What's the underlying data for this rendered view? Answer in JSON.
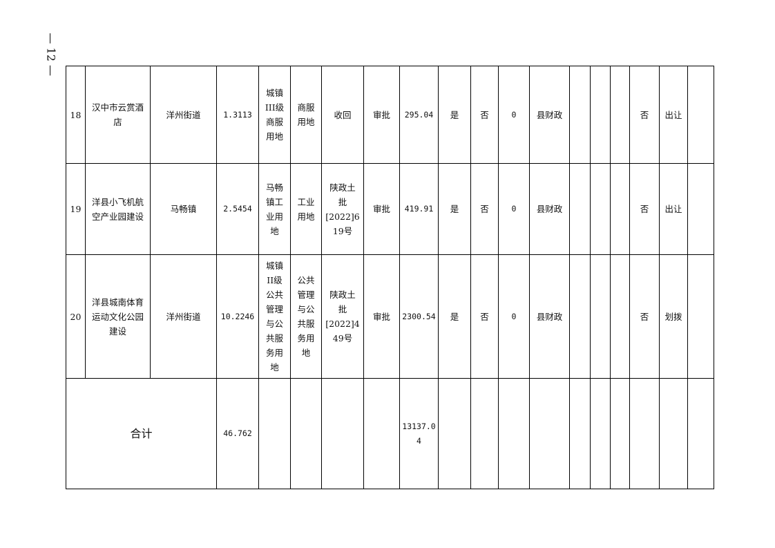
{
  "page_number": "— 12 —",
  "rows": [
    {
      "no": "18",
      "project": "汉中市云赏酒\n店",
      "location": "洋州街道",
      "area": "1.3113",
      "land_level": "城镇\nIII级\n商服\n用地",
      "land_use": "商服\n用地",
      "source": "收回",
      "approval": "审批",
      "amount": "295.04",
      "c10": "是",
      "c11": "否",
      "c12": "0",
      "funding": "县财政",
      "c14": "",
      "c15": "",
      "c16": "",
      "c17": "否",
      "method": "出让",
      "c19": ""
    },
    {
      "no": "19",
      "project": "洋县小飞机航\n空产业园建设",
      "location": "马畅镇",
      "area": "2.5454",
      "land_level": "马畅\n镇工\n业用\n地",
      "land_use": "工业\n用地",
      "source": "陕政土\n批\n[2022]6\n19号",
      "approval": "审批",
      "amount": "419.91",
      "c10": "是",
      "c11": "否",
      "c12": "0",
      "funding": "县财政",
      "c14": "",
      "c15": "",
      "c16": "",
      "c17": "否",
      "method": "出让",
      "c19": ""
    },
    {
      "no": "20",
      "project": "洋县城南体育\n运动文化公园\n建设",
      "location": "洋州街道",
      "area": "10.2246",
      "land_level": "城镇\nII级\n公共\n管理\n与公\n共服\n务用\n地",
      "land_use": "公共\n管理\n与公\n共服\n务用\n地",
      "source": "陕政土\n批\n[2022]4\n49号",
      "approval": "审批",
      "amount": "2300.54",
      "c10": "是",
      "c11": "否",
      "c12": "0",
      "funding": "县财政",
      "c14": "",
      "c15": "",
      "c16": "",
      "c17": "否",
      "method": "划拨",
      "c19": ""
    }
  ],
  "total": {
    "label": "合计",
    "area": "46.762",
    "amount": "13137.0\n4"
  }
}
